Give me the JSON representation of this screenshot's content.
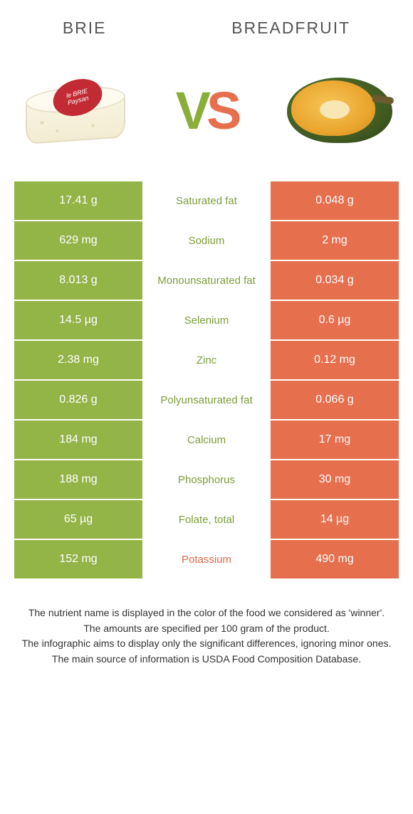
{
  "colors": {
    "left_bg": "#93b447",
    "right_bg": "#e6704e",
    "mid_bg": "#ffffff",
    "left_winner_text": "#7e9e38",
    "right_winner_text": "#de6848",
    "white_text": "#ffffff"
  },
  "header": {
    "left": "Brie",
    "right": "Breadfruit"
  },
  "vs": {
    "v": "V",
    "s": "S"
  },
  "brie_label_top": "le BRIE",
  "brie_label_bottom": "Paysan",
  "rows": [
    {
      "label": "Saturated fat",
      "left": "17.41 g",
      "right": "0.048 g",
      "winner": "left"
    },
    {
      "label": "Sodium",
      "left": "629 mg",
      "right": "2 mg",
      "winner": "left"
    },
    {
      "label": "Monounsaturated fat",
      "left": "8.013 g",
      "right": "0.034 g",
      "winner": "left"
    },
    {
      "label": "Selenium",
      "left": "14.5 µg",
      "right": "0.6 µg",
      "winner": "left"
    },
    {
      "label": "Zinc",
      "left": "2.38 mg",
      "right": "0.12 mg",
      "winner": "left"
    },
    {
      "label": "Polyunsaturated fat",
      "left": "0.826 g",
      "right": "0.066 g",
      "winner": "left"
    },
    {
      "label": "Calcium",
      "left": "184 mg",
      "right": "17 mg",
      "winner": "left"
    },
    {
      "label": "Phosphorus",
      "left": "188 mg",
      "right": "30 mg",
      "winner": "left"
    },
    {
      "label": "Folate, total",
      "left": "65 µg",
      "right": "14 µg",
      "winner": "left"
    },
    {
      "label": "Potassium",
      "left": "152 mg",
      "right": "490 mg",
      "winner": "right"
    }
  ],
  "footer": {
    "line1": "The nutrient name is displayed in the color of the food we considered as 'winner'.",
    "line2": "The amounts are specified per 100 gram of the product.",
    "line3": "The infographic aims to display only the significant differences, ignoring minor ones.",
    "line4": "The main source of information is USDA Food Composition Database."
  }
}
